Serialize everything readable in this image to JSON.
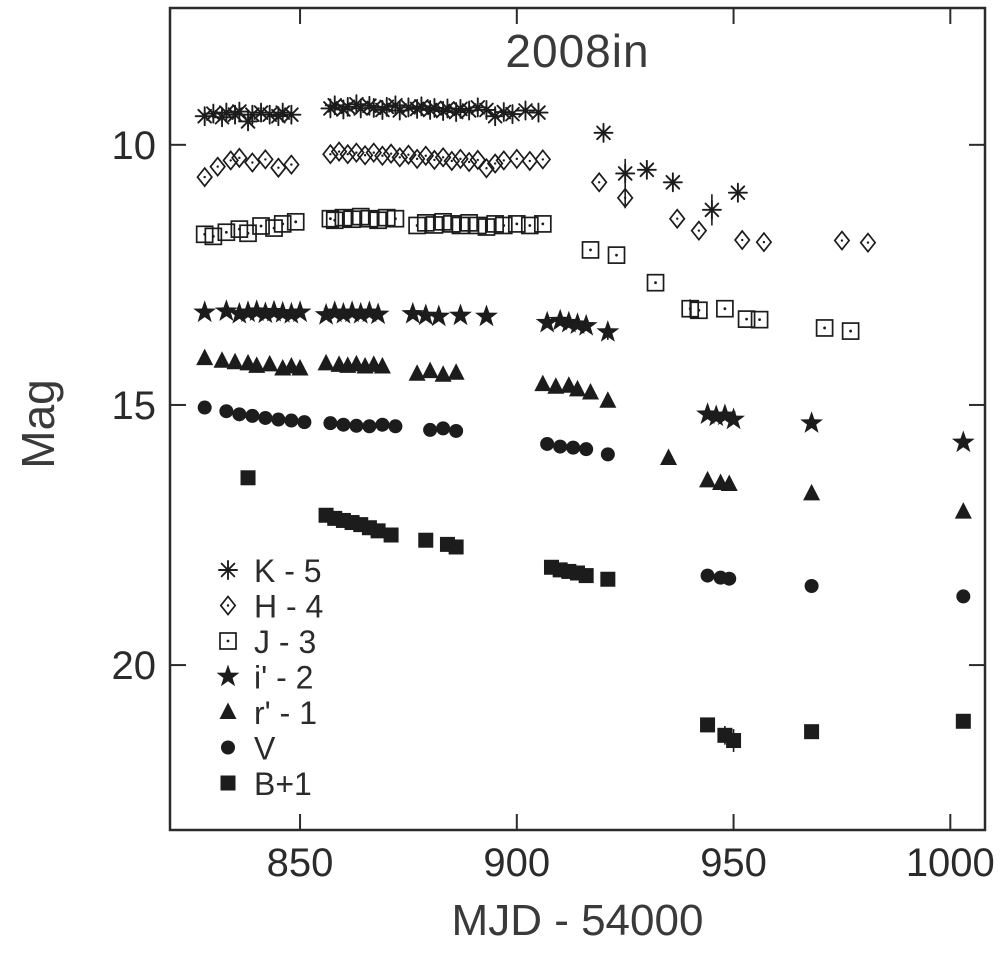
{
  "chart_data": {
    "type": "scatter",
    "title": "2008in",
    "xlabel": "MJD - 54000",
    "ylabel": "Mag",
    "x_ticks": [
      850,
      900,
      950,
      1000
    ],
    "y_ticks": [
      10,
      15,
      20
    ],
    "xlim": [
      820,
      1008
    ],
    "ylim_mag": [
      23.17,
      7.37
    ],
    "y_axis_inverted": true,
    "grid": false,
    "legend_position": "lower-left-inside",
    "marker_color": "#1c1c1c",
    "axis_color": "#2b2b2b",
    "series": [
      {
        "id": "k",
        "name": "K - 5",
        "marker": "asterisk",
        "points": [
          [
            828,
            9.45
          ],
          [
            830,
            9.4
          ],
          [
            832,
            9.47
          ],
          [
            833,
            9.38
          ],
          [
            835,
            9.42
          ],
          [
            836,
            9.36
          ],
          [
            838,
            9.55
          ],
          [
            839,
            9.42
          ],
          [
            841,
            9.38
          ],
          [
            843,
            9.42
          ],
          [
            845,
            9.45
          ],
          [
            846,
            9.38
          ],
          [
            848,
            9.42
          ],
          [
            857,
            9.3
          ],
          [
            858,
            9.24
          ],
          [
            860,
            9.32
          ],
          [
            861,
            9.27
          ],
          [
            863,
            9.22
          ],
          [
            864,
            9.3
          ],
          [
            866,
            9.25
          ],
          [
            867,
            9.29
          ],
          [
            869,
            9.33
          ],
          [
            870,
            9.27
          ],
          [
            872,
            9.24
          ],
          [
            873,
            9.34
          ],
          [
            875,
            9.28
          ],
          [
            877,
            9.31
          ],
          [
            878,
            9.26
          ],
          [
            880,
            9.33
          ],
          [
            881,
            9.29
          ],
          [
            883,
            9.35
          ],
          [
            884,
            9.3
          ],
          [
            886,
            9.37
          ],
          [
            887,
            9.31
          ],
          [
            889,
            9.34
          ],
          [
            891,
            9.28
          ],
          [
            893,
            9.33
          ],
          [
            895,
            9.45
          ],
          [
            897,
            9.37
          ],
          [
            899,
            9.41
          ],
          [
            902,
            9.34
          ],
          [
            905,
            9.38
          ],
          [
            920,
            9.77
          ],
          [
            925,
            10.55,
            0.28
          ],
          [
            930,
            10.48
          ],
          [
            936,
            10.72
          ],
          [
            945,
            11.25,
            0.3
          ],
          [
            951,
            10.92
          ]
        ]
      },
      {
        "id": "h",
        "name": "H - 4",
        "marker": "open-diamond",
        "points": [
          [
            828,
            10.62
          ],
          [
            831,
            10.42
          ],
          [
            834,
            10.3
          ],
          [
            836,
            10.25
          ],
          [
            839,
            10.34
          ],
          [
            842,
            10.28
          ],
          [
            845,
            10.44
          ],
          [
            848,
            10.38
          ],
          [
            857,
            10.18
          ],
          [
            859,
            10.13
          ],
          [
            861,
            10.18
          ],
          [
            863,
            10.15
          ],
          [
            865,
            10.2
          ],
          [
            867,
            10.15
          ],
          [
            869,
            10.21
          ],
          [
            871,
            10.17
          ],
          [
            873,
            10.24
          ],
          [
            875,
            10.19
          ],
          [
            877,
            10.27
          ],
          [
            879,
            10.21
          ],
          [
            881,
            10.29
          ],
          [
            883,
            10.24
          ],
          [
            885,
            10.31
          ],
          [
            887,
            10.27
          ],
          [
            889,
            10.33
          ],
          [
            891,
            10.29
          ],
          [
            893,
            10.45
          ],
          [
            895,
            10.36
          ],
          [
            897,
            10.3
          ],
          [
            900,
            10.27
          ],
          [
            903,
            10.31
          ],
          [
            906,
            10.28
          ],
          [
            919,
            10.72
          ],
          [
            925,
            11.02,
            0.2
          ],
          [
            937,
            11.42
          ],
          [
            942,
            11.65
          ],
          [
            952,
            11.83
          ],
          [
            957,
            11.87
          ],
          [
            975,
            11.84
          ],
          [
            981,
            11.88
          ]
        ]
      },
      {
        "id": "j",
        "name": "J - 3",
        "marker": "open-square",
        "points": [
          [
            828,
            11.72
          ],
          [
            830,
            11.76
          ],
          [
            833,
            11.68
          ],
          [
            836,
            11.62
          ],
          [
            838,
            11.7
          ],
          [
            841,
            11.56
          ],
          [
            844,
            11.6
          ],
          [
            846,
            11.52
          ],
          [
            849,
            11.48
          ],
          [
            857,
            11.42
          ],
          [
            858,
            11.45
          ],
          [
            860,
            11.4
          ],
          [
            862,
            11.43
          ],
          [
            864,
            11.38
          ],
          [
            866,
            11.42
          ],
          [
            868,
            11.45
          ],
          [
            870,
            11.4
          ],
          [
            872,
            11.42
          ],
          [
            877,
            11.55
          ],
          [
            879,
            11.5
          ],
          [
            881,
            11.54
          ],
          [
            883,
            11.48
          ],
          [
            885,
            11.52
          ],
          [
            887,
            11.55
          ],
          [
            889,
            11.5
          ],
          [
            891,
            11.55
          ],
          [
            893,
            11.58
          ],
          [
            895,
            11.52
          ],
          [
            897,
            11.55
          ],
          [
            900,
            11.52
          ],
          [
            903,
            11.55
          ],
          [
            906,
            11.52
          ],
          [
            917,
            12.02
          ],
          [
            923,
            12.12
          ],
          [
            932,
            12.65
          ],
          [
            940,
            13.15,
            0.18
          ],
          [
            942,
            13.18
          ],
          [
            948,
            13.15
          ],
          [
            953,
            13.35
          ],
          [
            956,
            13.36
          ],
          [
            971,
            13.52
          ],
          [
            977,
            13.58
          ]
        ]
      },
      {
        "id": "iprime",
        "name": "i' - 2",
        "marker": "filled-star",
        "points": [
          [
            828,
            13.22
          ],
          [
            833,
            13.2
          ],
          [
            836,
            13.25
          ],
          [
            838,
            13.22
          ],
          [
            840,
            13.2
          ],
          [
            842,
            13.24
          ],
          [
            844,
            13.21
          ],
          [
            846,
            13.23
          ],
          [
            848,
            13.25
          ],
          [
            850,
            13.22
          ],
          [
            856,
            13.27
          ],
          [
            858,
            13.22
          ],
          [
            860,
            13.25
          ],
          [
            862,
            13.22
          ],
          [
            864,
            13.25
          ],
          [
            866,
            13.22
          ],
          [
            868,
            13.26
          ],
          [
            876,
            13.25
          ],
          [
            879,
            13.28
          ],
          [
            882,
            13.3
          ],
          [
            887,
            13.28
          ],
          [
            893,
            13.3
          ],
          [
            907,
            13.42
          ],
          [
            910,
            13.38
          ],
          [
            912,
            13.42
          ],
          [
            914,
            13.45
          ],
          [
            916,
            13.48
          ],
          [
            921,
            13.6,
            0.15
          ],
          [
            944,
            15.18
          ],
          [
            946,
            15.22
          ],
          [
            948,
            15.2
          ],
          [
            950,
            15.28
          ],
          [
            968,
            15.35
          ],
          [
            1003,
            15.72
          ]
        ]
      },
      {
        "id": "rprime",
        "name": "r' - 1",
        "marker": "filled-triangle",
        "points": [
          [
            828,
            14.1
          ],
          [
            832,
            14.15
          ],
          [
            835,
            14.18
          ],
          [
            838,
            14.2
          ],
          [
            840,
            14.25
          ],
          [
            843,
            14.22
          ],
          [
            846,
            14.3
          ],
          [
            848,
            14.26
          ],
          [
            850,
            14.3
          ],
          [
            856,
            14.2
          ],
          [
            859,
            14.23
          ],
          [
            861,
            14.25
          ],
          [
            863,
            14.22
          ],
          [
            865,
            14.26
          ],
          [
            867,
            14.23
          ],
          [
            869,
            14.26
          ],
          [
            877,
            14.4
          ],
          [
            880,
            14.35
          ],
          [
            883,
            14.42
          ],
          [
            886,
            14.38
          ],
          [
            906,
            14.6
          ],
          [
            909,
            14.65
          ],
          [
            912,
            14.63
          ],
          [
            914,
            14.7
          ],
          [
            917,
            14.76
          ],
          [
            921,
            14.92
          ],
          [
            935,
            16.02
          ],
          [
            944,
            16.45
          ],
          [
            947,
            16.5
          ],
          [
            949,
            16.52
          ],
          [
            968,
            16.7
          ],
          [
            1003,
            17.05
          ]
        ]
      },
      {
        "id": "v",
        "name": "V",
        "marker": "filled-circle",
        "points": [
          [
            828,
            15.05
          ],
          [
            833,
            15.12
          ],
          [
            836,
            15.18
          ],
          [
            839,
            15.21
          ],
          [
            842,
            15.25
          ],
          [
            845,
            15.28
          ],
          [
            848,
            15.3
          ],
          [
            851,
            15.33
          ],
          [
            857,
            15.35
          ],
          [
            860,
            15.38
          ],
          [
            863,
            15.4
          ],
          [
            866,
            15.41
          ],
          [
            869,
            15.38
          ],
          [
            872,
            15.41
          ],
          [
            880,
            15.48
          ],
          [
            883,
            15.45
          ],
          [
            886,
            15.5
          ],
          [
            907,
            15.75
          ],
          [
            910,
            15.8
          ],
          [
            913,
            15.82
          ],
          [
            916,
            15.85
          ],
          [
            921,
            15.95
          ],
          [
            944,
            18.28
          ],
          [
            947,
            18.32
          ],
          [
            949,
            18.34
          ],
          [
            968,
            18.48
          ],
          [
            1003,
            18.68
          ]
        ]
      },
      {
        "id": "b",
        "name": "B+1",
        "marker": "filled-square",
        "points": [
          [
            838,
            16.4
          ],
          [
            856,
            17.12
          ],
          [
            858,
            17.18
          ],
          [
            860,
            17.22
          ],
          [
            862,
            17.26
          ],
          [
            864,
            17.3
          ],
          [
            866,
            17.36
          ],
          [
            868,
            17.42
          ],
          [
            871,
            17.5
          ],
          [
            879,
            17.6
          ],
          [
            884,
            17.68
          ],
          [
            886,
            17.73
          ],
          [
            908,
            18.12
          ],
          [
            910,
            18.17
          ],
          [
            912,
            18.2
          ],
          [
            914,
            18.23
          ],
          [
            916,
            18.28
          ],
          [
            921,
            18.35
          ],
          [
            944,
            21.15
          ],
          [
            948,
            21.35,
            0.18
          ],
          [
            950,
            21.45,
            0.22
          ],
          [
            968,
            21.28
          ],
          [
            1003,
            21.08
          ]
        ]
      }
    ]
  }
}
